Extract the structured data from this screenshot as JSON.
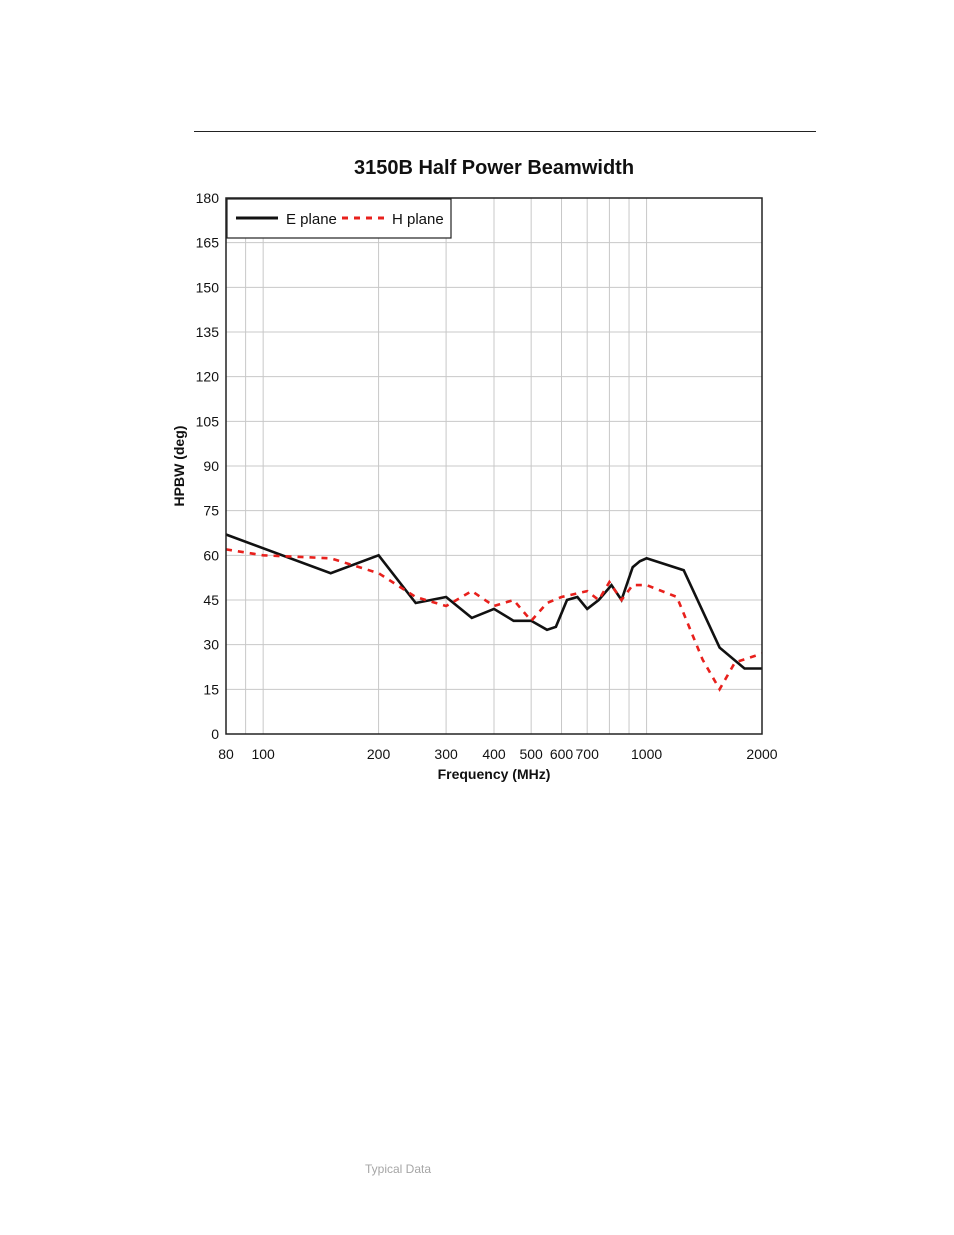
{
  "footer": {
    "note": "Typical Data"
  },
  "colors": {
    "e_plane": "#111111",
    "h_plane": "#e8201c",
    "grid": "#c8c8c8",
    "frame": "#222222"
  },
  "chart_data": {
    "type": "line",
    "title": "3150B Half Power Beamwidth",
    "xlabel": "Frequency (MHz)",
    "ylabel": "HPBW (deg)",
    "xscale": "log",
    "xlim": [
      80,
      2000
    ],
    "ylim": [
      0,
      180
    ],
    "grid": true,
    "legend_position": "top-left",
    "x_ticks": [
      80,
      100,
      200,
      300,
      400,
      500,
      600,
      700,
      1000,
      2000
    ],
    "x_tick_labels": [
      "80",
      "100",
      "200",
      "300",
      "400",
      "500",
      "600",
      "700",
      "1000",
      "2000"
    ],
    "x_gridlines": [
      80,
      90,
      100,
      200,
      300,
      400,
      500,
      600,
      700,
      800,
      900,
      1000,
      2000
    ],
    "y_ticks": [
      0,
      15,
      30,
      45,
      60,
      75,
      90,
      105,
      120,
      135,
      150,
      165,
      180
    ],
    "y_tick_labels": [
      "0",
      "15",
      "30",
      "45",
      "60",
      "75",
      "90",
      "105",
      "120",
      "135",
      "150",
      "165",
      "180"
    ],
    "series": [
      {
        "name": "E plane",
        "style": "solid",
        "x": [
          80,
          150,
          200,
          250,
          300,
          350,
          400,
          450,
          500,
          550,
          580,
          620,
          660,
          700,
          750,
          810,
          860,
          920,
          960,
          1000,
          1250,
          1550,
          1800,
          2000
        ],
        "y": [
          67,
          54,
          60,
          44,
          46,
          39,
          42,
          38,
          38,
          35,
          36,
          45,
          46,
          42,
          45,
          50,
          45,
          56,
          58,
          59,
          55,
          29,
          22,
          22
        ]
      },
      {
        "name": "H plane",
        "style": "dashed",
        "x": [
          80,
          100,
          150,
          200,
          250,
          300,
          350,
          400,
          450,
          500,
          550,
          600,
          700,
          750,
          800,
          860,
          920,
          1000,
          1200,
          1400,
          1550,
          1700,
          2000
        ],
        "y": [
          62,
          60,
          59,
          54,
          46,
          43,
          48,
          43,
          45,
          38,
          44,
          46,
          48,
          45,
          51,
          45,
          50,
          50,
          46,
          25,
          15,
          24,
          27
        ]
      }
    ]
  }
}
